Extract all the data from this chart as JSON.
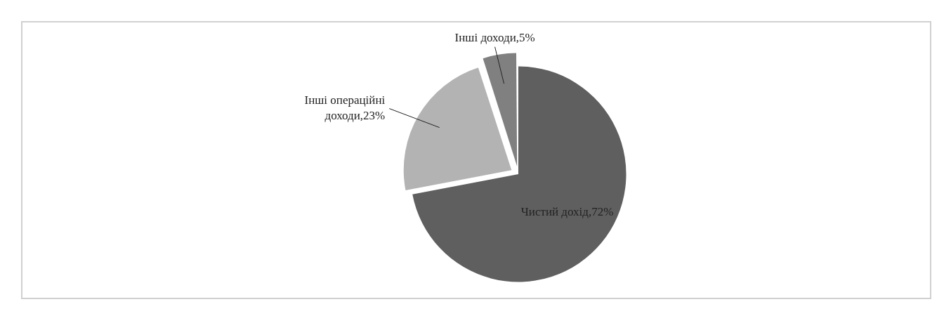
{
  "chart_data": {
    "type": "pie",
    "categories": [
      "Чистий дохід",
      "Інші операційні доходи",
      "Інші доходи"
    ],
    "values": [
      72,
      23,
      5
    ],
    "colors": [
      "#5f5f5f",
      "#b3b3b3",
      "#808080"
    ],
    "value_labels": [
      "72%",
      "23%",
      "5%"
    ]
  }
}
